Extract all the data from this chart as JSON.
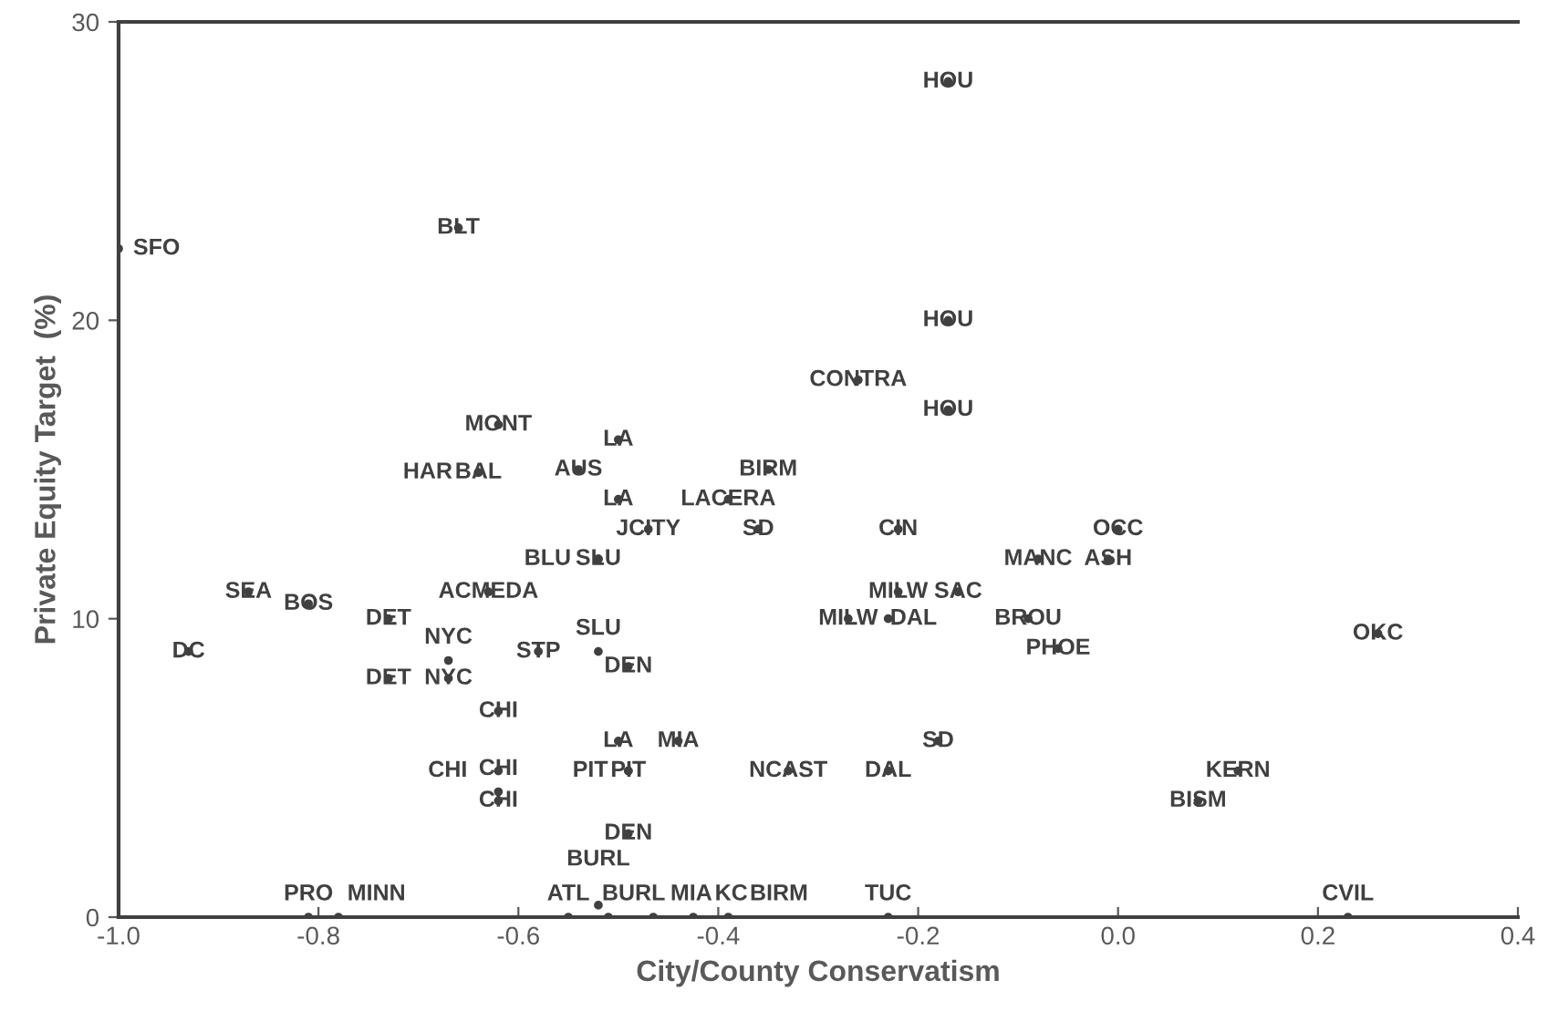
{
  "chart_data": {
    "type": "scatter",
    "xlabel": "City/County Conservatism",
    "ylabel": "Private Equity Target  (%)",
    "xlim": [
      -1.0,
      0.4
    ],
    "xticks": [
      {
        "value": -1.0,
        "label": "-1.0"
      },
      {
        "value": -0.8,
        "label": "-0.8"
      },
      {
        "value": -0.6,
        "label": "-0.6"
      },
      {
        "value": -0.4,
        "label": "-0.4"
      },
      {
        "value": -0.2,
        "label": "-0.2"
      },
      {
        "value": 0.0,
        "label": "0.0"
      },
      {
        "value": 0.2,
        "label": "0.2"
      },
      {
        "value": 0.4,
        "label": "0.4"
      }
    ],
    "ylim": [
      0,
      30
    ],
    "yticks": [
      0,
      10,
      20,
      30
    ],
    "grid": false,
    "marker": "circle",
    "series": [
      {
        "color": "#404040",
        "x": [
          -1.0,
          -0.66,
          -0.17,
          -0.17,
          -0.17,
          -0.26,
          -0.62,
          -0.5,
          -0.64,
          -0.64,
          -0.54,
          -0.35,
          -0.5,
          -0.39,
          -0.47,
          -0.36,
          -0.52,
          -0.52,
          -0.22,
          0.0,
          -0.08,
          -0.01,
          -0.87,
          -0.81,
          -0.63,
          -0.22,
          -0.16,
          -0.73,
          -0.73,
          -0.27,
          -0.23,
          -0.09,
          -0.06,
          0.26,
          -0.93,
          -0.67,
          -0.67,
          -0.58,
          -0.52,
          -0.49,
          -0.62,
          -0.62,
          -0.62,
          -0.62,
          -0.5,
          -0.44,
          -0.49,
          -0.49,
          -0.49,
          -0.33,
          -0.23,
          -0.18,
          0.12,
          0.08,
          -0.52,
          -0.81,
          -0.78,
          -0.55,
          -0.51,
          -0.465,
          -0.425,
          -0.39,
          -0.23,
          0.23
        ],
        "values": [
          22.4,
          23.1,
          28.0,
          20.0,
          17.0,
          18.0,
          16.5,
          16.0,
          14.9,
          14.9,
          15.0,
          15.0,
          14.0,
          14.0,
          13.0,
          13.0,
          12.0,
          12.0,
          13.0,
          13.0,
          12.0,
          12.0,
          10.9,
          10.5,
          10.9,
          10.9,
          10.9,
          10.0,
          8.0,
          10.0,
          10.0,
          10.0,
          9.0,
          9.5,
          8.9,
          8.6,
          8.0,
          8.9,
          8.9,
          8.4,
          6.9,
          4.9,
          4.2,
          3.9,
          5.9,
          5.9,
          4.9,
          4.9,
          2.8,
          4.9,
          4.9,
          5.9,
          4.9,
          3.9,
          0.4,
          0,
          0,
          0,
          0,
          0,
          0,
          0,
          0,
          0
        ],
        "value_labels": [
          "SFO",
          "BLT",
          "HOU",
          "HOU",
          "HOU",
          "CONTRA",
          "MONT",
          "LA",
          "BAL",
          "HAR",
          "AUS",
          "BIRM",
          "LA",
          "LACERA",
          "JCITY",
          "SD",
          "SLU",
          "BLU",
          "CIN",
          "OCC",
          "MANC",
          "ASH",
          "SEA",
          "BOS",
          "ACMEDA",
          "MILW",
          "SAC",
          "DET",
          "DET",
          "MILW",
          "DAL",
          "BROU",
          "PHOE",
          "OKC",
          "DC",
          "NYC",
          "NYC",
          "STP",
          "SLU",
          "DEN",
          "CHI",
          "CHI",
          "CHI",
          "CHI",
          "LA",
          "MIA",
          "PIT",
          "PIT",
          "DEN",
          "NCAST",
          "DAL",
          "SD",
          "KERN",
          "BISM",
          "BURL",
          "PRO",
          "MINN",
          "ATL",
          "BURL",
          "MIA",
          "KC",
          "BIRM",
          "TUC",
          "CVIL"
        ]
      }
    ]
  }
}
